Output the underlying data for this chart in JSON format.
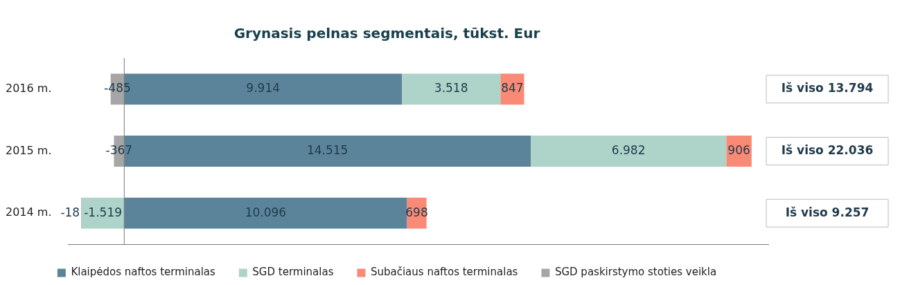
{
  "chart_data": {
    "type": "bar",
    "orientation": "horizontal",
    "stacked": true,
    "title": "Grynasis pelnas segmentais, tūkst. Eur",
    "categories": [
      "2016 m.",
      "2015 m.",
      "2014 m."
    ],
    "xlim": [
      -2000,
      23000
    ],
    "series": [
      {
        "name": "Klaipėdos naftos terminalas",
        "color": "#5b849b",
        "values": [
          9914,
          14515,
          10096
        ],
        "value_labels": [
          "9.914",
          "14.515",
          "10.096"
        ]
      },
      {
        "name": "SGD terminalas",
        "color": "#aed3c9",
        "values": [
          3518,
          6982,
          -1519
        ],
        "value_labels": [
          "3.518",
          "6.982",
          "-1.519"
        ]
      },
      {
        "name": "Subačiaus naftos terminalas",
        "color": "#f98a76",
        "values": [
          847,
          906,
          698
        ],
        "value_labels": [
          "847",
          "906",
          "698"
        ]
      },
      {
        "name": "SGD paskirstymo stoties veikla",
        "color": "#a6a6a6",
        "values": [
          -485,
          -367,
          -18
        ],
        "value_labels": [
          "-485",
          "-367",
          "-18"
        ]
      }
    ],
    "annotations": [
      "Iš viso 13.794",
      "Iš viso 22.036",
      "Iš viso 9.257"
    ],
    "legend": "bottom",
    "grid": false
  }
}
